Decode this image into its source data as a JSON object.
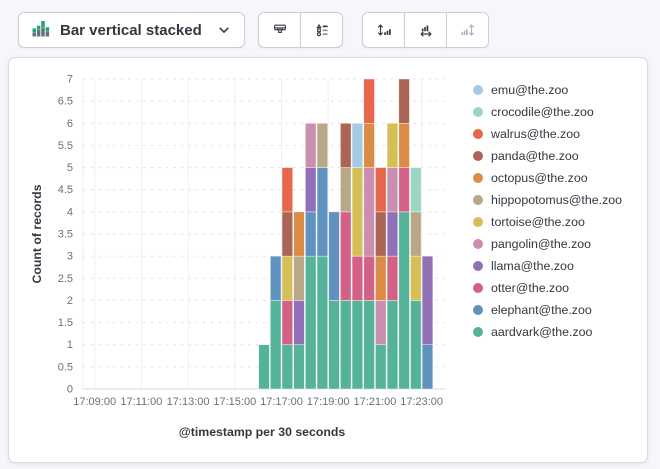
{
  "colors": {
    "page_bg": "#F6F7FB",
    "text": "#343741",
    "muted_text": "#69707D",
    "border": "#D7DCE5",
    "disabled_icon": "#A9B2C2",
    "icon_green": "#23A27A",
    "icon_gray": "#69707D"
  },
  "toolbar": {
    "chart_type_selector": {
      "label": "Bar vertical stacked",
      "icon": "bar-vertical-stacked-icon",
      "chevron": "chevron-down-icon"
    },
    "style_group": [
      {
        "id": "visual-options",
        "icon": "paint-brush-icon",
        "disabled": false
      },
      {
        "id": "legend-settings",
        "icon": "legend-list-icon",
        "disabled": false
      }
    ],
    "axes_group": [
      {
        "id": "left-axis",
        "icon": "left-axis-icon",
        "disabled": false
      },
      {
        "id": "bottom-axis",
        "icon": "bottom-axis-icon",
        "disabled": false
      },
      {
        "id": "right-axis",
        "icon": "right-axis-icon",
        "disabled": true
      }
    ]
  },
  "chart_data": {
    "type": "bar",
    "stacked": true,
    "title": "",
    "xlabel": "@timestamp per 30 seconds",
    "ylabel": "Count of records",
    "ylim": [
      0,
      7
    ],
    "y_tick_step": 0.5,
    "grid": true,
    "legend_position": "right",
    "x_domain": [
      "17:08:30",
      "17:24:00"
    ],
    "x_axis_ticks": [
      "17:09:00",
      "17:11:00",
      "17:13:00",
      "17:15:00",
      "17:17:00",
      "17:19:00",
      "17:21:00",
      "17:23:00"
    ],
    "bar_interval_seconds": 30,
    "categories": [
      "17:16:00",
      "17:16:30",
      "17:17:00",
      "17:17:30",
      "17:18:00",
      "17:18:30",
      "17:19:00",
      "17:19:30",
      "17:20:00",
      "17:20:30",
      "17:21:00",
      "17:21:30",
      "17:22:00",
      "17:22:30",
      "17:23:00"
    ],
    "series": [
      {
        "name": "aardvark@the.zoo",
        "color": "#54B399",
        "values": [
          1,
          2,
          1,
          1,
          3,
          3,
          2,
          2,
          2,
          2,
          1,
          2,
          4,
          2,
          0
        ]
      },
      {
        "name": "elephant@the.zoo",
        "color": "#6092C0",
        "values": [
          0,
          1,
          0,
          0,
          1,
          2,
          2,
          0,
          0,
          0,
          0,
          0,
          0,
          0,
          1
        ]
      },
      {
        "name": "otter@the.zoo",
        "color": "#D36086",
        "values": [
          0,
          0,
          1,
          0,
          0,
          0,
          0,
          2,
          1,
          1,
          0,
          1,
          1,
          0,
          0
        ]
      },
      {
        "name": "llama@the.zoo",
        "color": "#9170B8",
        "values": [
          0,
          0,
          0,
          1,
          1,
          0,
          0,
          0,
          0,
          0,
          0,
          1,
          0,
          0,
          2
        ]
      },
      {
        "name": "pangolin@the.zoo",
        "color": "#CA8EAE",
        "values": [
          0,
          0,
          0,
          0,
          1,
          0,
          0,
          0,
          0,
          2,
          1,
          1,
          0,
          0,
          0
        ]
      },
      {
        "name": "tortoise@the.zoo",
        "color": "#D6BF57",
        "values": [
          0,
          0,
          1,
          0,
          0,
          0,
          0,
          0,
          2,
          0,
          0,
          1,
          0,
          1,
          0
        ]
      },
      {
        "name": "hippopotomus@the.zoo",
        "color": "#B9A888",
        "values": [
          0,
          0,
          0,
          1,
          0,
          1,
          0,
          1,
          0,
          0,
          0,
          0,
          0,
          1,
          0
        ]
      },
      {
        "name": "octopus@the.zoo",
        "color": "#DA8B45",
        "values": [
          0,
          0,
          0,
          1,
          0,
          0,
          0,
          0,
          0,
          1,
          1,
          0,
          1,
          0,
          0
        ]
      },
      {
        "name": "panda@the.zoo",
        "color": "#AA6556",
        "values": [
          0,
          0,
          1,
          0,
          0,
          0,
          0,
          1,
          0,
          0,
          1,
          0,
          1,
          0,
          0
        ]
      },
      {
        "name": "walrus@the.zoo",
        "color": "#E7664C",
        "values": [
          0,
          0,
          1,
          0,
          0,
          0,
          0,
          0,
          0,
          1,
          1,
          0,
          0,
          0,
          0
        ]
      },
      {
        "name": "crocodile@the.zoo",
        "color": "#9CD5C3",
        "values": [
          0,
          0,
          0,
          0,
          0,
          0,
          0,
          0,
          0,
          0,
          0,
          0,
          0,
          1,
          0
        ]
      },
      {
        "name": "emu@the.zoo",
        "color": "#A6C9E5",
        "values": [
          0,
          0,
          0,
          0,
          0,
          0,
          0,
          0,
          1,
          0,
          0,
          0,
          0,
          0,
          0
        ]
      }
    ],
    "legend_order_top_to_bottom": [
      "emu@the.zoo",
      "crocodile@the.zoo",
      "walrus@the.zoo",
      "panda@the.zoo",
      "octopus@the.zoo",
      "hippopotomus@the.zoo",
      "tortoise@the.zoo",
      "pangolin@the.zoo",
      "llama@the.zoo",
      "otter@the.zoo",
      "elephant@the.zoo",
      "aardvark@the.zoo"
    ]
  }
}
